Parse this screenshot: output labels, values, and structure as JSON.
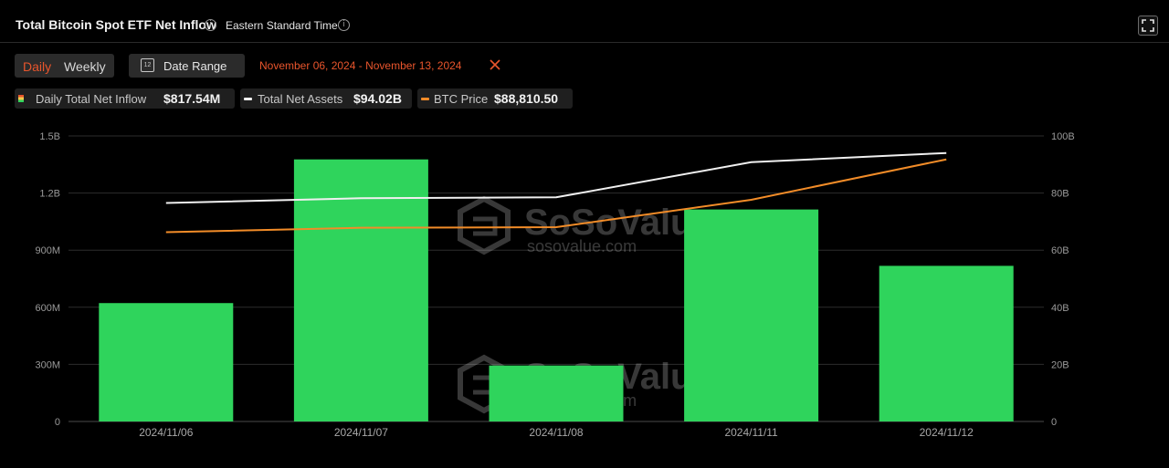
{
  "header": {
    "title": "Total Bitcoin Spot ETF Net Inflow",
    "timezone": "Eastern Standard Time",
    "info_glyph": "i"
  },
  "controls": {
    "daily_label": "Daily",
    "weekly_label": "Weekly",
    "date_range_label": "Date Range",
    "calendar_glyph": "12",
    "date_range_value": "November 06, 2024 - November 13, 2024"
  },
  "legend": [
    {
      "name": "Daily Total Net Inflow",
      "value": "$817.54M",
      "color": "#2fd45c"
    },
    {
      "name": "Total Net Assets",
      "value": "$94.02B",
      "color": "#f0f0f0"
    },
    {
      "name": "BTC Price",
      "value": "$88,810.50",
      "color": "#f28c28"
    }
  ],
  "watermark": {
    "brand": "SoSoValue",
    "url": "sosovalue.com"
  },
  "colors": {
    "bar": "#2fd45c",
    "net_assets_line": "#f0f0f0",
    "btc_price_line": "#f28c28",
    "accent": "#e8552c"
  },
  "chart_data": {
    "type": "bar",
    "categories": [
      "2024/11/06",
      "2024/11/07",
      "2024/11/08",
      "2024/11/11",
      "2024/11/12"
    ],
    "series": [
      {
        "name": "Daily Total Net Inflow",
        "type": "bar",
        "axis": "left",
        "values": [
          621900000,
          1376700000,
          293800000,
          1113600000,
          817540000
        ]
      },
      {
        "name": "Total Net Assets",
        "type": "line",
        "axis": "right",
        "values": [
          76.5,
          78.2,
          78.5,
          90.8,
          94.02
        ]
      },
      {
        "name": "BTC Price",
        "type": "line",
        "axis": "right_hidden",
        "values": [
          75800,
          76600,
          76700,
          81600,
          88810.5
        ]
      }
    ],
    "left_axis": {
      "min": 0,
      "max": 1500000000,
      "ticks": [
        0,
        300000000,
        600000000,
        900000000,
        1200000000,
        1500000000
      ],
      "tick_labels": [
        "0",
        "300M",
        "600M",
        "900M",
        "1.2B",
        "1.5B"
      ]
    },
    "right_axis": {
      "min": 0,
      "max": 100,
      "ticks": [
        0,
        20,
        40,
        60,
        80,
        100
      ],
      "tick_labels": [
        "0",
        "20B",
        "40B",
        "60B",
        "80B",
        "100B"
      ]
    },
    "btc_price_scale": {
      "min": 42000,
      "max": 93000
    },
    "grid": true,
    "legend_position": "top-left"
  }
}
